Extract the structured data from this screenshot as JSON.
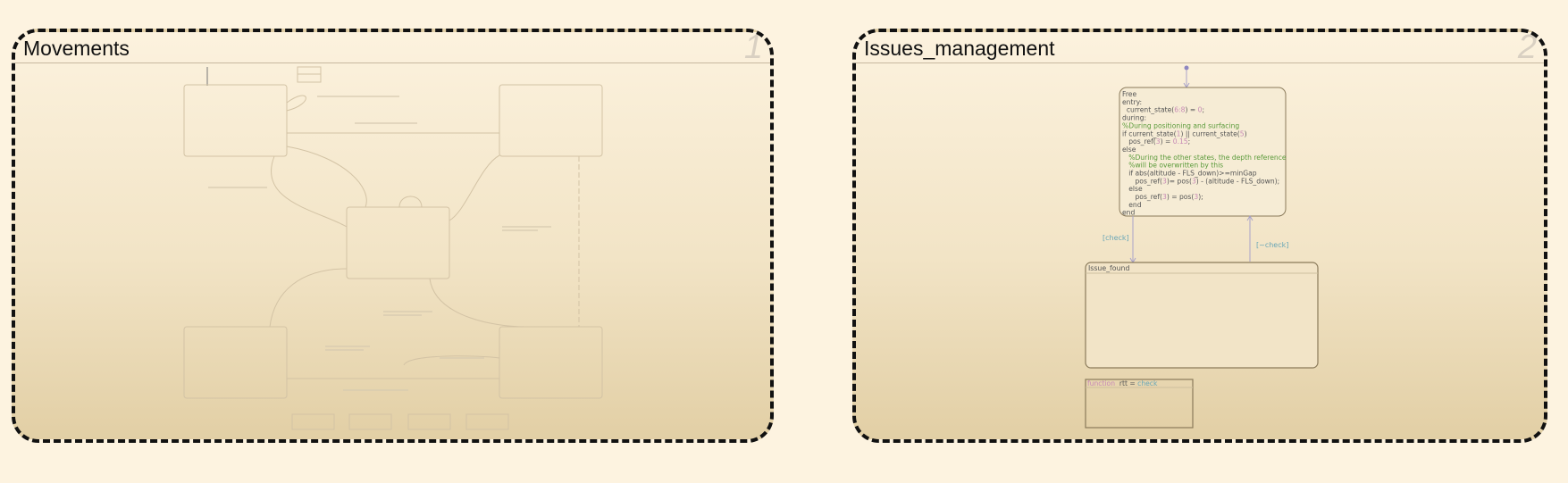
{
  "charts": [
    {
      "id": "1",
      "title": "Movements",
      "number": "1"
    },
    {
      "id": "2",
      "title": "Issues_management",
      "number": "2",
      "free_state": {
        "name": "Free",
        "lines": [
          {
            "parts": [
              {
                "t": "entry:",
                "c": "#555"
              }
            ]
          },
          {
            "parts": [
              {
                "t": "  current_state(",
                "c": "#555"
              },
              {
                "t": "6:8",
                "c": "#c78ab5"
              },
              {
                "t": ") = ",
                "c": "#555"
              },
              {
                "t": "0",
                "c": "#c78ab5"
              },
              {
                "t": ";",
                "c": "#555"
              }
            ]
          },
          {
            "parts": [
              {
                "t": "during:",
                "c": "#555"
              }
            ]
          },
          {
            "parts": [
              {
                "t": "%During positioning and surfacing",
                "c": "#5a9a3a"
              }
            ]
          },
          {
            "parts": [
              {
                "t": "if current_state(",
                "c": "#555"
              },
              {
                "t": "1",
                "c": "#c78ab5"
              },
              {
                "t": ") || current_state(",
                "c": "#555"
              },
              {
                "t": "5",
                "c": "#c78ab5"
              },
              {
                "t": ")",
                "c": "#555"
              }
            ]
          },
          {
            "parts": [
              {
                "t": "   pos_ref(",
                "c": "#555"
              },
              {
                "t": "3",
                "c": "#c78ab5"
              },
              {
                "t": ") = ",
                "c": "#555"
              },
              {
                "t": "0.15",
                "c": "#c78ab5"
              },
              {
                "t": ";",
                "c": "#555"
              }
            ]
          },
          {
            "parts": [
              {
                "t": "else",
                "c": "#555"
              }
            ]
          },
          {
            "parts": [
              {
                "t": "   %During the other states, the depth reference",
                "c": "#5a9a3a"
              }
            ]
          },
          {
            "parts": [
              {
                "t": "   %will be overwritten by this",
                "c": "#5a9a3a"
              }
            ]
          },
          {
            "parts": [
              {
                "t": "   if abs(altitude - FLS_down)>=minGap",
                "c": "#555"
              }
            ]
          },
          {
            "parts": [
              {
                "t": "      pos_ref(",
                "c": "#555"
              },
              {
                "t": "3",
                "c": "#c78ab5"
              },
              {
                "t": ")= pos(",
                "c": "#555"
              },
              {
                "t": "3",
                "c": "#c78ab5"
              },
              {
                "t": ") - (altitude - FLS_down);",
                "c": "#555"
              }
            ]
          },
          {
            "parts": [
              {
                "t": "   else",
                "c": "#555"
              }
            ]
          },
          {
            "parts": [
              {
                "t": "      pos_ref(",
                "c": "#555"
              },
              {
                "t": "3",
                "c": "#c78ab5"
              },
              {
                "t": ") = pos(",
                "c": "#555"
              },
              {
                "t": "3",
                "c": "#c78ab5"
              },
              {
                "t": ");",
                "c": "#555"
              }
            ]
          },
          {
            "parts": [
              {
                "t": "   end",
                "c": "#555"
              }
            ]
          },
          {
            "parts": [
              {
                "t": "end",
                "c": "#555"
              }
            ]
          }
        ]
      },
      "transition_down": "[check]",
      "transition_up": "[~check]",
      "issue_state": {
        "name": "Issue_found"
      },
      "function_box": {
        "keyword": "function",
        "signature": "rtt = ",
        "name": "check"
      }
    }
  ],
  "colors": {
    "panel_border": "#111111",
    "state_border": "#8a7a5a",
    "transition": "#a9a3c9",
    "transition_label": "#6aa7b7",
    "keyword": "#c78ab5",
    "comment": "#5a9a3a"
  }
}
